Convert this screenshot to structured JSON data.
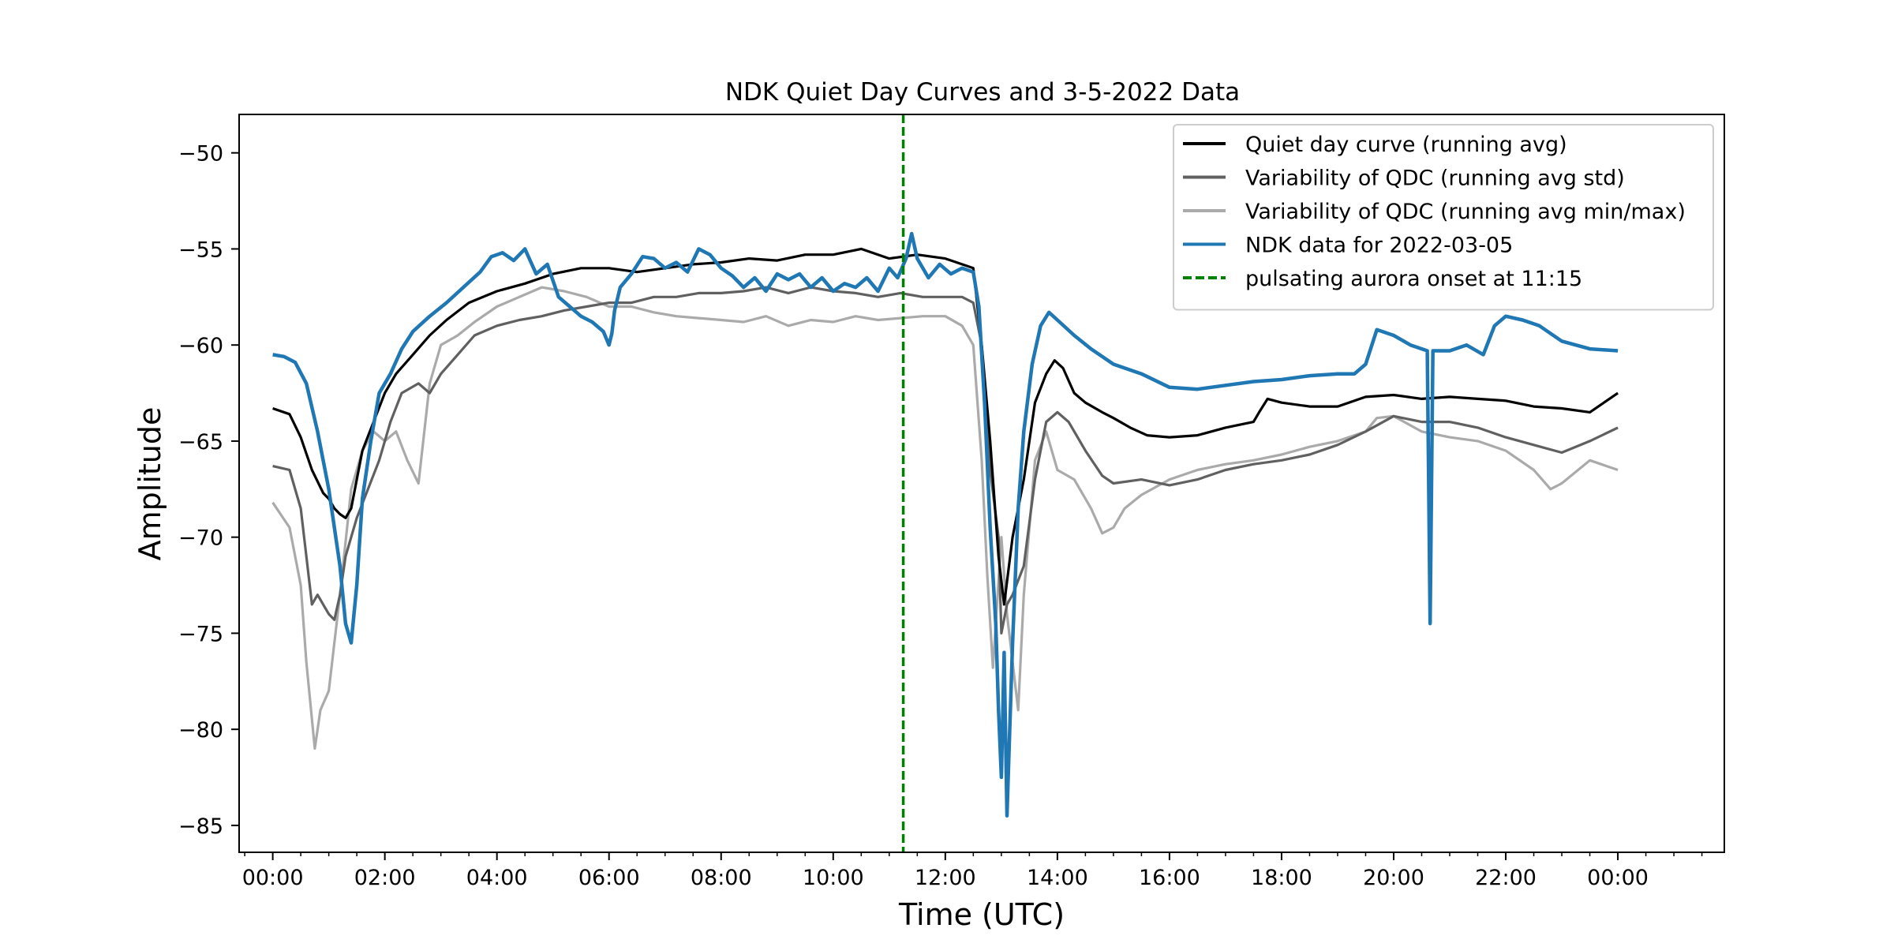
{
  "chart_data": {
    "type": "line",
    "title": "NDK Quiet Day Curves and 3-5-2022 Data",
    "xlabel": "Time (UTC)",
    "ylabel": "Amplitude",
    "xlim": [
      -0.6,
      25.9
    ],
    "ylim": [
      -86.4,
      -48.0
    ],
    "x_ticks": [
      0,
      2,
      4,
      6,
      8,
      10,
      12,
      14,
      16,
      18,
      20,
      22,
      24
    ],
    "x_tick_labels": [
      "00:00",
      "02:00",
      "04:00",
      "06:00",
      "08:00",
      "10:00",
      "12:00",
      "14:00",
      "16:00",
      "18:00",
      "20:00",
      "22:00",
      "00:00"
    ],
    "y_ticks": [
      -85,
      -80,
      -75,
      -70,
      -65,
      -60,
      -55,
      -50
    ],
    "y_tick_labels": [
      "−85",
      "−80",
      "−75",
      "−70",
      "−65",
      "−60",
      "−55",
      "−50"
    ],
    "grid": false,
    "legend_position": "top-right",
    "onset_line": {
      "x": 11.25,
      "color": "#008000",
      "name": "pulsating aurora onset at 11:15"
    },
    "series": [
      {
        "name": "Variability of QDC (running avg min/max)",
        "color": "#aaaaaa",
        "x": [
          0,
          0.3,
          0.5,
          0.6,
          0.75,
          0.85,
          1.0,
          1.2,
          1.4,
          1.6,
          1.8,
          2.0,
          2.2,
          2.4,
          2.6,
          2.8,
          3.0,
          3.3,
          3.6,
          4.0,
          4.4,
          4.8,
          5.2,
          5.6,
          6.0,
          6.4,
          6.8,
          7.2,
          7.6,
          8.0,
          8.4,
          8.8,
          9.2,
          9.6,
          10.0,
          10.4,
          10.8,
          11.2,
          11.6,
          12.0,
          12.3,
          12.5,
          12.65,
          12.75,
          12.85,
          13.0,
          13.1,
          13.3,
          13.4,
          13.6,
          13.8,
          14.0,
          14.3,
          14.6,
          14.8,
          15.0,
          15.2,
          15.5,
          16.0,
          16.5,
          17.0,
          17.5,
          18.0,
          18.5,
          19.0,
          19.5,
          19.7,
          20.0,
          20.5,
          21.0,
          21.5,
          22.0,
          22.5,
          22.8,
          23.0,
          23.5,
          24.0
        ],
        "y": [
          -68.2,
          -69.5,
          -72.5,
          -76.5,
          -81.0,
          -79.0,
          -78.0,
          -73.0,
          -67.5,
          -65.5,
          -64.5,
          -65.0,
          -64.5,
          -66.0,
          -67.2,
          -62.0,
          -60.0,
          -59.5,
          -58.8,
          -58.0,
          -57.5,
          -57.0,
          -57.2,
          -57.5,
          -58.0,
          -58.0,
          -58.3,
          -58.5,
          -58.6,
          -58.7,
          -58.8,
          -58.5,
          -59.0,
          -58.7,
          -58.8,
          -58.5,
          -58.7,
          -58.6,
          -58.5,
          -58.5,
          -59.0,
          -60.0,
          -66.0,
          -72.0,
          -76.8,
          -70.0,
          -74.0,
          -79.0,
          -73.0,
          -66.0,
          -64.5,
          -66.5,
          -67.0,
          -68.5,
          -69.8,
          -69.5,
          -68.5,
          -67.8,
          -67.0,
          -66.5,
          -66.2,
          -66.0,
          -65.7,
          -65.3,
          -65.0,
          -64.5,
          -63.8,
          -63.7,
          -64.5,
          -64.8,
          -65.0,
          -65.5,
          -66.5,
          -67.5,
          -67.2,
          -66.0,
          -66.5
        ]
      },
      {
        "name": "Variability of QDC (running avg std)",
        "color": "#606060",
        "x": [
          0,
          0.3,
          0.5,
          0.6,
          0.7,
          0.8,
          0.9,
          1.0,
          1.1,
          1.2,
          1.3,
          1.5,
          1.7,
          1.9,
          2.1,
          2.3,
          2.6,
          2.8,
          3.0,
          3.3,
          3.6,
          4.0,
          4.4,
          4.8,
          5.2,
          5.6,
          6.0,
          6.4,
          6.8,
          7.2,
          7.6,
          8.0,
          8.4,
          8.8,
          9.2,
          9.6,
          10.0,
          10.4,
          10.8,
          11.2,
          11.6,
          12.0,
          12.3,
          12.5,
          12.65,
          12.8,
          12.95,
          13.0,
          13.1,
          13.2,
          13.4,
          13.6,
          13.8,
          14.0,
          14.2,
          14.5,
          14.8,
          15.0,
          15.5,
          16.0,
          16.5,
          17.0,
          17.5,
          18.0,
          18.5,
          19.0,
          19.5,
          20.0,
          20.5,
          21.0,
          21.5,
          22.0,
          22.5,
          23.0,
          23.5,
          24.0
        ],
        "y": [
          -66.3,
          -66.5,
          -68.5,
          -71.0,
          -73.5,
          -73.0,
          -73.5,
          -74.0,
          -74.3,
          -73.0,
          -71.0,
          -69.0,
          -67.5,
          -66.0,
          -64.0,
          -62.5,
          -62.0,
          -62.5,
          -61.5,
          -60.5,
          -59.5,
          -59.0,
          -58.7,
          -58.5,
          -58.2,
          -58.0,
          -57.8,
          -57.8,
          -57.5,
          -57.5,
          -57.3,
          -57.3,
          -57.2,
          -57.0,
          -57.3,
          -57.0,
          -57.2,
          -57.3,
          -57.5,
          -57.3,
          -57.5,
          -57.5,
          -57.5,
          -57.8,
          -60.0,
          -66.5,
          -70.0,
          -75.0,
          -73.5,
          -73.0,
          -71.5,
          -67.0,
          -64.0,
          -63.5,
          -64.0,
          -65.5,
          -66.8,
          -67.2,
          -67.0,
          -67.3,
          -67.0,
          -66.5,
          -66.2,
          -66.0,
          -65.7,
          -65.2,
          -64.5,
          -63.7,
          -64.0,
          -64.0,
          -64.3,
          -64.8,
          -65.2,
          -65.6,
          -65.0,
          -64.3
        ]
      },
      {
        "name": "Quiet day curve (running avg)",
        "color": "#000000",
        "x": [
          0,
          0.3,
          0.5,
          0.7,
          0.9,
          1.0,
          1.1,
          1.2,
          1.3,
          1.4,
          1.5,
          1.6,
          1.8,
          2.0,
          2.2,
          2.5,
          2.8,
          3.1,
          3.5,
          4.0,
          4.5,
          5.0,
          5.5,
          6.0,
          6.5,
          7.0,
          7.5,
          8.0,
          8.5,
          9.0,
          9.5,
          10.0,
          10.5,
          11.0,
          11.5,
          12.0,
          12.3,
          12.5,
          12.65,
          12.8,
          12.95,
          13.05,
          13.2,
          13.4,
          13.6,
          13.8,
          13.95,
          14.1,
          14.3,
          14.5,
          14.8,
          15.0,
          15.3,
          15.6,
          16.0,
          16.5,
          17.0,
          17.5,
          17.6,
          17.75,
          18.0,
          18.5,
          19.0,
          19.5,
          20.0,
          20.5,
          21.0,
          21.5,
          22.0,
          22.5,
          23.0,
          23.5,
          24.0
        ],
        "y": [
          -63.3,
          -63.6,
          -64.8,
          -66.5,
          -67.7,
          -68.0,
          -68.5,
          -68.8,
          -69.0,
          -68.5,
          -67.0,
          -65.5,
          -64.0,
          -62.5,
          -61.5,
          -60.5,
          -59.5,
          -58.7,
          -57.8,
          -57.2,
          -56.8,
          -56.3,
          -56.0,
          -56.0,
          -56.2,
          -56.0,
          -55.8,
          -55.7,
          -55.5,
          -55.6,
          -55.3,
          -55.3,
          -55.0,
          -55.5,
          -55.3,
          -55.5,
          -55.8,
          -56.0,
          -60.0,
          -65.0,
          -71.0,
          -73.5,
          -70.0,
          -67.0,
          -63.0,
          -61.5,
          -60.8,
          -61.2,
          -62.5,
          -63.0,
          -63.5,
          -63.8,
          -64.3,
          -64.7,
          -64.8,
          -64.7,
          -64.3,
          -64.0,
          -63.5,
          -62.8,
          -63.0,
          -63.2,
          -63.2,
          -62.7,
          -62.6,
          -62.8,
          -62.7,
          -62.8,
          -62.9,
          -63.2,
          -63.3,
          -63.5,
          -62.5
        ]
      },
      {
        "name": "NDK data for 2022-03-05",
        "color": "#1f77b4",
        "x": [
          0,
          0.2,
          0.4,
          0.6,
          0.8,
          1.0,
          1.2,
          1.3,
          1.4,
          1.5,
          1.6,
          1.75,
          1.9,
          2.1,
          2.3,
          2.5,
          2.8,
          3.1,
          3.4,
          3.7,
          3.9,
          4.1,
          4.3,
          4.5,
          4.7,
          4.9,
          5.1,
          5.3,
          5.5,
          5.7,
          5.9,
          6.0,
          6.05,
          6.1,
          6.2,
          6.4,
          6.6,
          6.8,
          7.0,
          7.2,
          7.4,
          7.6,
          7.8,
          8.0,
          8.2,
          8.4,
          8.6,
          8.8,
          9.0,
          9.2,
          9.4,
          9.6,
          9.8,
          10.0,
          10.2,
          10.4,
          10.6,
          10.8,
          11.0,
          11.15,
          11.3,
          11.4,
          11.5,
          11.7,
          11.9,
          12.1,
          12.3,
          12.5,
          12.6,
          12.7,
          12.8,
          12.9,
          12.95,
          13.0,
          13.05,
          13.1,
          13.15,
          13.2,
          13.3,
          13.4,
          13.55,
          13.7,
          13.85,
          14.0,
          14.3,
          14.6,
          15.0,
          15.5,
          16.0,
          16.5,
          17.0,
          17.5,
          18.0,
          18.5,
          19.0,
          19.3,
          19.5,
          19.7,
          20.0,
          20.3,
          20.6,
          20.65,
          20.7,
          21.0,
          21.3,
          21.6,
          21.8,
          22.0,
          22.3,
          22.6,
          23.0,
          23.5,
          24.0
        ],
        "y": [
          -60.5,
          -60.6,
          -60.9,
          -62.0,
          -64.5,
          -67.5,
          -71.5,
          -74.5,
          -75.5,
          -72.5,
          -68.0,
          -65.0,
          -62.5,
          -61.5,
          -60.2,
          -59.3,
          -58.5,
          -57.8,
          -57.0,
          -56.2,
          -55.4,
          -55.2,
          -55.6,
          -55.0,
          -56.3,
          -55.8,
          -57.5,
          -58.0,
          -58.5,
          -58.8,
          -59.3,
          -60.0,
          -59.4,
          -58.2,
          -57.0,
          -56.3,
          -55.4,
          -55.5,
          -56.0,
          -55.7,
          -56.2,
          -55.0,
          -55.3,
          -56.0,
          -56.4,
          -57.0,
          -56.5,
          -57.2,
          -56.3,
          -56.6,
          -56.3,
          -57.0,
          -56.5,
          -57.2,
          -56.8,
          -57.0,
          -56.5,
          -57.2,
          -56.0,
          -56.5,
          -55.5,
          -54.2,
          -55.5,
          -56.5,
          -55.8,
          -56.3,
          -56.0,
          -56.2,
          -58.0,
          -63.0,
          -69.5,
          -74.5,
          -79.0,
          -82.5,
          -76.0,
          -84.5,
          -80.0,
          -75.5,
          -68.5,
          -64.5,
          -61.0,
          -59.0,
          -58.3,
          -58.7,
          -59.5,
          -60.2,
          -61.0,
          -61.5,
          -62.2,
          -62.3,
          -62.1,
          -61.9,
          -61.8,
          -61.6,
          -61.5,
          -61.5,
          -61.0,
          -59.2,
          -59.5,
          -60.0,
          -60.3,
          -74.5,
          -60.3,
          -60.3,
          -60.0,
          -60.5,
          -59.0,
          -58.5,
          -58.7,
          -59.0,
          -59.8,
          -60.2,
          -60.3
        ]
      }
    ],
    "legend_entries": [
      {
        "name": "Quiet day curve (running avg)",
        "color": "#000000",
        "dashed": false
      },
      {
        "name": "Variability of QDC (running avg std)",
        "color": "#606060",
        "dashed": false
      },
      {
        "name": "Variability of QDC (running avg min/max)",
        "color": "#aaaaaa",
        "dashed": false
      },
      {
        "name": "NDK data for 2022-03-05",
        "color": "#1f77b4",
        "dashed": false
      },
      {
        "name": "pulsating aurora onset at 11:15",
        "color": "#008000",
        "dashed": true
      }
    ]
  }
}
